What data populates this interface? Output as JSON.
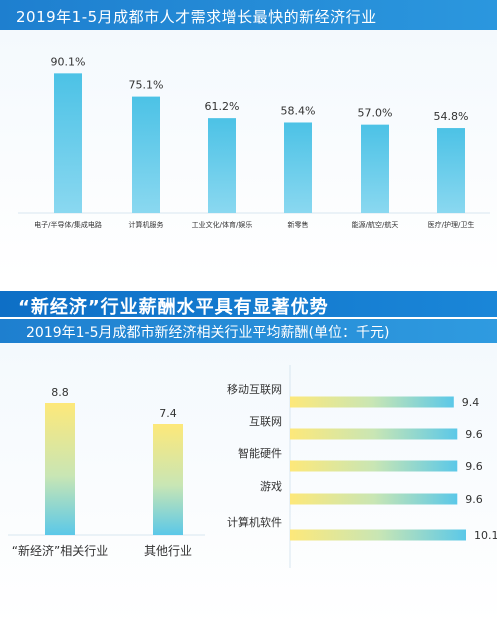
{
  "chart1": {
    "title": "2019年1-5月成都市人才需求增长最快的新经济行业",
    "chart_data": {
      "type": "bar",
      "title": "2019年1-5月成都市人才需求增长最快的新经济行业",
      "categories": [
        "电子/半导体/集成电路",
        "计算机服务",
        "工业文化/体育/娱乐",
        "新零售",
        "能源/航空/航天",
        "医疗/护理/卫生"
      ],
      "values": [
        90.1,
        75.1,
        61.2,
        58.4,
        57.0,
        54.8
      ],
      "value_labels": [
        "90.1%",
        "75.1%",
        "61.2%",
        "58.4%",
        "57.0%",
        "54.8%"
      ],
      "unit": "%",
      "ylim": [
        0,
        100
      ],
      "grid": false,
      "bar_color": "#5bc8e8"
    }
  },
  "section2": {
    "heading": "“新经济”行业薪酬水平具有显著优势",
    "subtitle": "2019年1-5月成都市新经济相关行业平均薪酬(单位：千元)"
  },
  "chart2": {
    "chart_data": {
      "type": "bar",
      "categories": [
        "“新经济”相关行业",
        "其他行业"
      ],
      "values": [
        8.8,
        7.4
      ],
      "value_labels": [
        "8.8",
        "7.4"
      ],
      "ylim": [
        0,
        10
      ],
      "grid": false,
      "colors": [
        "#fde87a",
        "#5bc8e8"
      ]
    }
  },
  "chart3": {
    "chart_data": {
      "type": "bar",
      "orientation": "horizontal",
      "categories": [
        "移动互联网",
        "互联网",
        "智能硬件",
        "游戏",
        "计算机软件"
      ],
      "values": [
        9.4,
        9.6,
        9.6,
        9.6,
        10.1
      ],
      "value_labels": [
        "9.4",
        "9.6",
        "9.6",
        "9.6",
        "10.1"
      ],
      "xlim": [
        0,
        10.1
      ],
      "grid": false,
      "colors": [
        "#fde87a",
        "#5bc8e8"
      ]
    }
  }
}
